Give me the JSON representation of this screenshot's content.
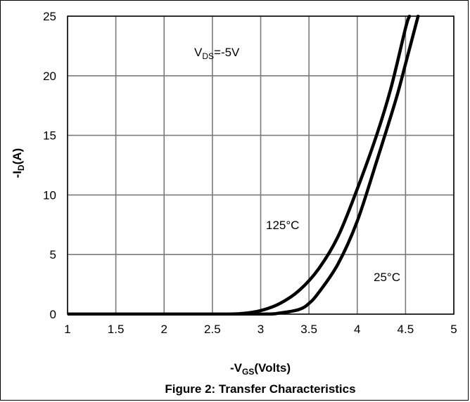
{
  "chart_data": {
    "type": "line",
    "title": "Figure 2: Transfer Characteristics",
    "xlabel": {
      "prefix": "-V",
      "sub": "GS",
      "suffix": "(Volts)"
    },
    "ylabel": {
      "prefix": "-I",
      "sub": "D",
      "suffix": "(A)"
    },
    "annotation": {
      "prefix": "V",
      "sub": "DS",
      "suffix": "=-5V"
    },
    "xlim": [
      1,
      5
    ],
    "ylim": [
      0,
      25
    ],
    "x_ticks": [
      "1",
      "1.5",
      "2",
      "2.5",
      "3",
      "3.5",
      "4",
      "4.5",
      "5"
    ],
    "y_ticks": [
      "0",
      "5",
      "10",
      "15",
      "20",
      "25"
    ],
    "grid": true,
    "series": [
      {
        "name": "125°C",
        "points": [
          [
            1,
            0
          ],
          [
            2,
            0
          ],
          [
            2.6,
            0
          ],
          [
            2.8,
            0.05
          ],
          [
            3.0,
            0.3
          ],
          [
            3.2,
            0.9
          ],
          [
            3.4,
            2.0
          ],
          [
            3.6,
            3.8
          ],
          [
            3.8,
            6.5
          ],
          [
            4.0,
            10.5
          ],
          [
            4.2,
            15.0
          ],
          [
            4.35,
            19.0
          ],
          [
            4.5,
            24.0
          ],
          [
            4.54,
            25.0
          ]
        ]
      },
      {
        "name": "25°C",
        "points": [
          [
            1,
            0
          ],
          [
            2,
            0
          ],
          [
            3.0,
            0
          ],
          [
            3.2,
            0.1
          ],
          [
            3.4,
            0.4
          ],
          [
            3.5,
            0.9
          ],
          [
            3.6,
            1.8
          ],
          [
            3.8,
            4.2
          ],
          [
            4.0,
            7.8
          ],
          [
            4.2,
            12.8
          ],
          [
            4.4,
            18.0
          ],
          [
            4.5,
            21.0
          ],
          [
            4.63,
            25.0
          ]
        ]
      }
    ]
  }
}
